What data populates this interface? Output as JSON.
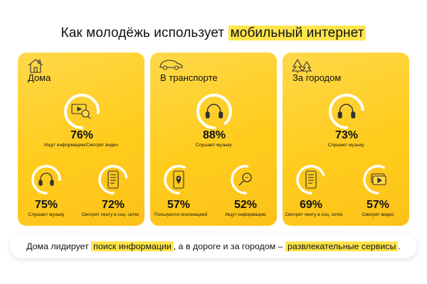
{
  "title": {
    "prefix": "Как молодёжь использует",
    "highlight": "мобильный интернет"
  },
  "accent_color": "#FFE54C",
  "card_color": "#FFCC1C",
  "cards": [
    {
      "title": "Дома",
      "icon": "house-icon",
      "main": {
        "value": "76%",
        "fraction": 0.76,
        "label": "Ищут информацию/Смотрят видео",
        "icon": "video-search-icon"
      },
      "stats": [
        {
          "value": "75%",
          "fraction": 0.75,
          "label": "Слушают музыку",
          "icon": "headphones-icon"
        },
        {
          "value": "72%",
          "fraction": 0.72,
          "label": "Смотрят ленту в соц. сетях",
          "icon": "phone-feed-icon"
        }
      ]
    },
    {
      "title": "В транспорте",
      "icon": "car-icon",
      "main": {
        "value": "88%",
        "fraction": 0.88,
        "label": "Слушают музыку",
        "icon": "headphones-icon"
      },
      "stats": [
        {
          "value": "57%",
          "fraction": 0.57,
          "label": "Пользуются геолокацией",
          "icon": "phone-location-icon"
        },
        {
          "value": "52%",
          "fraction": 0.52,
          "label": "Ищут информацию",
          "icon": "search-icon"
        }
      ]
    },
    {
      "title": "За городом",
      "icon": "trees-icon",
      "main": {
        "value": "73%",
        "fraction": 0.73,
        "label": "Слушают музыку",
        "icon": "headphones-icon"
      },
      "stats": [
        {
          "value": "69%",
          "fraction": 0.69,
          "label": "Смотрят ленту в соц. сетях",
          "icon": "phone-feed-icon"
        },
        {
          "value": "57%",
          "fraction": 0.57,
          "label": "Смотрят видео",
          "icon": "video-icon"
        }
      ]
    }
  ],
  "footer": {
    "part1": "Дома лидирует ",
    "highlight1": "поиск информации",
    "part2": ", а в дороге и за городом – ",
    "highlight2": "развлекательные сервисы",
    "part3": "."
  }
}
